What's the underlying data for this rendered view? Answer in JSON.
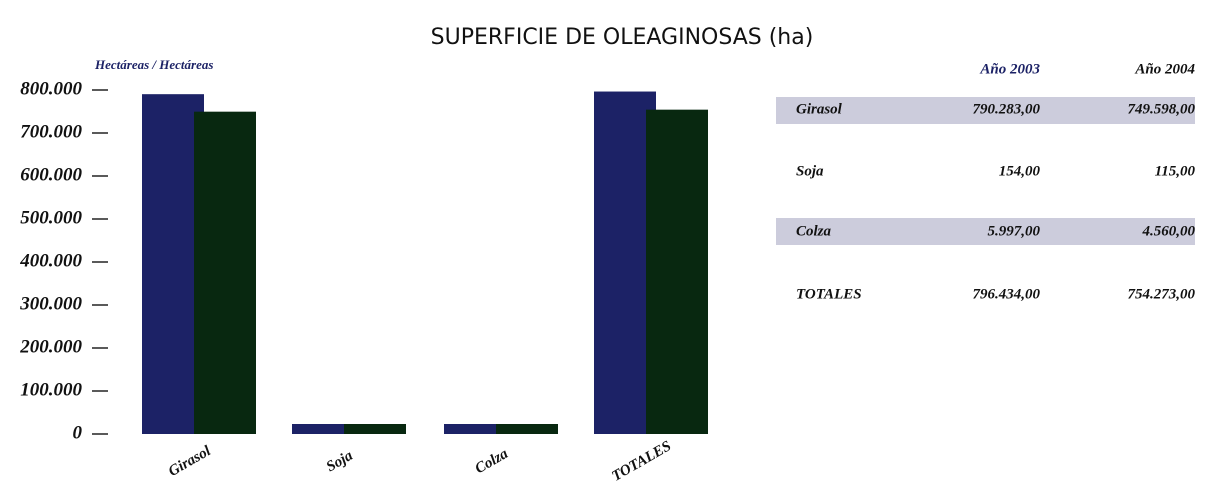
{
  "chart_data": {
    "type": "bar",
    "title": "SUPERFICIE DE OLEAGINOSAS (ha)",
    "ylabel": "Hectáreas / Hectáreas",
    "categories": [
      "Girasol",
      "Soja",
      "Colza",
      "TOTALES"
    ],
    "series": [
      {
        "name": "Año 2003",
        "color": "#1c2266",
        "values": [
          790283,
          154,
          5997,
          796434
        ],
        "value_labels": [
          "790.283,00",
          "154,00",
          "5.997,00",
          "796.434,00"
        ]
      },
      {
        "name": "Año 2004",
        "color": "#082810",
        "values": [
          749598,
          115,
          4560,
          754273
        ],
        "value_labels": [
          "749.598,00",
          "115,00",
          "4.560,00",
          "754.273,00"
        ]
      }
    ],
    "ylim": [
      0,
      800000
    ],
    "yticks": [
      0,
      {
        "value": 100000,
        "label": "100.000"
      },
      {
        "value": 200000,
        "label": "200.000"
      },
      {
        "value": 300000,
        "label": "300.000"
      },
      {
        "value": 400000,
        "label": "400.000"
      },
      {
        "value": 500000,
        "label": "500.000"
      },
      {
        "value": 600000,
        "label": "600.000"
      },
      {
        "value": 700000,
        "label": "700.000"
      },
      {
        "value": 800000,
        "label": "800.000"
      }
    ]
  }
}
